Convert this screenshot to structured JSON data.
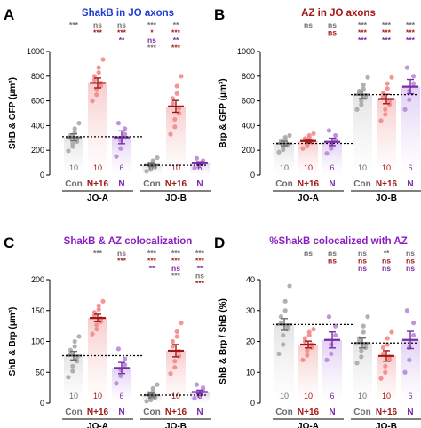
{
  "colors": {
    "con": "#6d6d6d",
    "n16": "#a31616",
    "n": "#7b2aa8",
    "con_bar_fill": "#e4e4e4",
    "n16_bar_fill": "#f8cccc",
    "n_bar_fill": "#e1d0f4",
    "con_point": "#a9a9a9",
    "n16_point": "#f28a8a",
    "n_point": "#b58ad9",
    "title_blue": "#1f3bd1",
    "title_red": "#a31616",
    "title_purple": "#8a1fc1"
  },
  "chart_data": [
    {
      "panel": "A",
      "type": "bar",
      "title": "ShakB in JO axons",
      "title_color": "title_blue",
      "ylabel": "ShB & GFP (μm³)",
      "ylim": [
        0,
        1000
      ],
      "yticks": [
        "0",
        "200",
        "400",
        "600",
        "800",
        "1000"
      ],
      "ytick_values": [
        0,
        200,
        400,
        600,
        800,
        1000
      ],
      "groups": [
        "JO-A",
        "JO-B"
      ],
      "categories": [
        "Con",
        "N+16",
        "N"
      ],
      "bars": [
        {
          "group": 0,
          "cat": 0,
          "mean": 305,
          "sem": 28,
          "n": "10",
          "points": [
            195,
            230,
            255,
            270,
            285,
            300,
            320,
            345,
            375,
            420
          ]
        },
        {
          "group": 0,
          "cat": 1,
          "mean": 745,
          "sem": 40,
          "n": "10",
          "points": [
            600,
            650,
            690,
            720,
            745,
            770,
            800,
            830,
            870,
            935
          ]
        },
        {
          "group": 0,
          "cat": 2,
          "mean": 305,
          "sem": 52,
          "n": "6",
          "points": [
            150,
            215,
            280,
            330,
            375,
            420
          ]
        },
        {
          "group": 1,
          "cat": 0,
          "mean": 80,
          "sem": 12,
          "n": "10",
          "points": [
            30,
            45,
            55,
            65,
            75,
            80,
            90,
            100,
            115,
            140
          ]
        },
        {
          "group": 1,
          "cat": 1,
          "mean": 555,
          "sem": 48,
          "n": "10",
          "points": [
            330,
            390,
            450,
            500,
            540,
            580,
            620,
            660,
            720,
            800
          ]
        },
        {
          "group": 1,
          "cat": 2,
          "mean": 95,
          "sem": 12,
          "n": "6",
          "points": [
            55,
            70,
            85,
            100,
            115,
            135
          ]
        }
      ],
      "reference_lines": [
        {
          "group": 0,
          "value": 310
        },
        {
          "group": 1,
          "value": 78
        }
      ],
      "significance": [
        {
          "group": 0,
          "cat": 0,
          "rows": [
            {
              "text": "***",
              "color": "con"
            }
          ]
        },
        {
          "group": 0,
          "cat": 1,
          "rows": [
            {
              "text": "ns",
              "color": "con"
            },
            {
              "text": "***",
              "color": "n16"
            }
          ]
        },
        {
          "group": 0,
          "cat": 2,
          "rows": [
            {
              "text": "ns",
              "color": "con"
            },
            {
              "text": "***",
              "color": "n16"
            },
            {
              "text": "**",
              "color": "n"
            }
          ]
        },
        {
          "group": 1,
          "cat": 0,
          "rows": [
            {
              "text": "***",
              "color": "con"
            },
            {
              "text": "*",
              "color": "n16"
            },
            {
              "text": "ns",
              "color": "n"
            },
            {
              "text": "***",
              "color": "con"
            }
          ]
        },
        {
          "group": 1,
          "cat": 1,
          "rows": [
            {
              "text": "**",
              "color": "con"
            },
            {
              "text": "***",
              "color": "n16"
            },
            {
              "text": "**",
              "color": "n"
            },
            {
              "text": "***",
              "color": "n16"
            }
          ]
        }
      ]
    },
    {
      "panel": "B",
      "type": "bar",
      "title": "AZ in JO axons",
      "title_color": "title_red",
      "ylabel": "Brp & GFP (μm³)",
      "ylim": [
        0,
        1000
      ],
      "yticks": [
        "0",
        "200",
        "400",
        "600",
        "800",
        "1000"
      ],
      "ytick_values": [
        0,
        200,
        400,
        600,
        800,
        1000
      ],
      "groups": [
        "JO-A",
        "JO-B"
      ],
      "categories": [
        "Con",
        "N+16",
        "N"
      ],
      "bars": [
        {
          "group": 0,
          "cat": 0,
          "mean": 255,
          "sem": 18,
          "n": "10",
          "points": [
            185,
            205,
            225,
            240,
            250,
            260,
            275,
            290,
            305,
            320
          ]
        },
        {
          "group": 0,
          "cat": 1,
          "mean": 275,
          "sem": 15,
          "n": "10",
          "points": [
            215,
            235,
            250,
            265,
            275,
            285,
            295,
            305,
            320,
            335
          ]
        },
        {
          "group": 0,
          "cat": 2,
          "mean": 268,
          "sem": 30,
          "n": "6",
          "points": [
            175,
            215,
            250,
            285,
            320,
            360
          ]
        },
        {
          "group": 1,
          "cat": 0,
          "mean": 650,
          "sem": 30,
          "n": "10",
          "points": [
            530,
            570,
            600,
            625,
            645,
            660,
            680,
            700,
            730,
            790
          ]
        },
        {
          "group": 1,
          "cat": 1,
          "mean": 615,
          "sem": 38,
          "n": "10",
          "points": [
            440,
            490,
            530,
            570,
            600,
            630,
            660,
            700,
            740,
            790
          ]
        },
        {
          "group": 1,
          "cat": 2,
          "mean": 715,
          "sem": 58,
          "n": "6",
          "points": [
            530,
            610,
            680,
            740,
            800,
            870
          ]
        }
      ],
      "reference_lines": [
        {
          "group": 0,
          "value": 255
        },
        {
          "group": 1,
          "value": 650
        }
      ],
      "significance": [
        {
          "group": 0,
          "cat": 1,
          "rows": [
            {
              "text": "ns",
              "color": "con"
            }
          ]
        },
        {
          "group": 0,
          "cat": 2,
          "rows": [
            {
              "text": "ns",
              "color": "con"
            },
            {
              "text": "ns",
              "color": "n16"
            }
          ]
        },
        {
          "group": 1,
          "cat": 0,
          "rows": [
            {
              "text": "***",
              "color": "con"
            },
            {
              "text": "***",
              "color": "n16"
            },
            {
              "text": "***",
              "color": "n"
            }
          ]
        },
        {
          "group": 1,
          "cat": 1,
          "rows": [
            {
              "text": "***",
              "color": "con"
            },
            {
              "text": "***",
              "color": "n16"
            },
            {
              "text": "***",
              "color": "n"
            }
          ]
        },
        {
          "group": 1,
          "cat": 2,
          "rows": [
            {
              "text": "***",
              "color": "con"
            },
            {
              "text": "***",
              "color": "n16"
            },
            {
              "text": "***",
              "color": "n"
            }
          ]
        }
      ]
    },
    {
      "panel": "C",
      "type": "bar",
      "title": "ShakB & AZ colocalization",
      "title_color": "title_purple",
      "ylabel": "ShB & Brp (μm³)",
      "ylim": [
        0,
        200
      ],
      "yticks": [
        "0",
        "50",
        "100",
        "150",
        "200"
      ],
      "ytick_values": [
        0,
        50,
        100,
        150,
        200
      ],
      "groups": [
        "JO-A",
        "JO-B"
      ],
      "categories": [
        "Con",
        "N+16",
        "N"
      ],
      "bars": [
        {
          "group": 0,
          "cat": 0,
          "mean": 77,
          "sem": 7,
          "n": "10",
          "points": [
            42,
            52,
            60,
            68,
            74,
            80,
            86,
            92,
            100,
            108
          ]
        },
        {
          "group": 0,
          "cat": 1,
          "mean": 138,
          "sem": 6,
          "n": "10",
          "points": [
            112,
            120,
            127,
            132,
            137,
            142,
            147,
            152,
            158,
            165
          ]
        },
        {
          "group": 0,
          "cat": 2,
          "mean": 57,
          "sem": 9,
          "n": "6",
          "points": [
            32,
            44,
            54,
            62,
            72,
            88
          ]
        },
        {
          "group": 1,
          "cat": 0,
          "mean": 13,
          "sem": 3,
          "n": "10",
          "points": [
            3,
            5,
            7,
            9,
            11,
            13,
            16,
            19,
            24,
            30
          ]
        },
        {
          "group": 1,
          "cat": 1,
          "mean": 85,
          "sem": 10,
          "n": "10",
          "points": [
            48,
            58,
            68,
            76,
            84,
            92,
            100,
            108,
            116,
            130
          ]
        },
        {
          "group": 1,
          "cat": 2,
          "mean": 18,
          "sem": 3,
          "n": "6",
          "points": [
            8,
            12,
            16,
            20,
            25,
            30
          ]
        }
      ],
      "reference_lines": [
        {
          "group": 0,
          "value": 77
        },
        {
          "group": 1,
          "value": 13
        }
      ],
      "significance": [
        {
          "group": 0,
          "cat": 1,
          "rows": [
            {
              "text": "***",
              "color": "con"
            }
          ]
        },
        {
          "group": 0,
          "cat": 2,
          "rows": [
            {
              "text": "ns",
              "color": "con"
            },
            {
              "text": "***",
              "color": "n16"
            }
          ]
        },
        {
          "group": 1,
          "cat": 0,
          "rows": [
            {
              "text": "***",
              "color": "con"
            },
            {
              "text": "***",
              "color": "n16"
            },
            {
              "text": "**",
              "color": "n"
            }
          ]
        },
        {
          "group": 1,
          "cat": 1,
          "rows": [
            {
              "text": "***",
              "color": "con"
            },
            {
              "text": "***",
              "color": "n16"
            },
            {
              "text": "ns",
              "color": "n"
            },
            {
              "text": "***",
              "color": "con"
            }
          ]
        },
        {
          "group": 1,
          "cat": 2,
          "rows": [
            {
              "text": "***",
              "color": "con"
            },
            {
              "text": "***",
              "color": "n16"
            },
            {
              "text": "**",
              "color": "n"
            },
            {
              "text": "ns",
              "color": "con"
            },
            {
              "text": "***",
              "color": "n16"
            }
          ]
        }
      ]
    },
    {
      "panel": "D",
      "type": "bar",
      "title": "%ShakB colocalized with AZ",
      "title_color": "title_purple",
      "ylabel": "ShB & Brp / ShB (%)",
      "ylim": [
        0,
        40
      ],
      "yticks": [
        "0",
        "10",
        "20",
        "30",
        "40"
      ],
      "ytick_values": [
        0,
        10,
        20,
        30,
        40
      ],
      "groups": [
        "JO-A",
        "JO-B"
      ],
      "categories": [
        "Con",
        "N+16",
        "N"
      ],
      "bars": [
        {
          "group": 0,
          "cat": 0,
          "mean": 25.5,
          "sem": 1.9,
          "n": "10",
          "points": [
            16,
            19,
            22,
            24,
            25,
            26,
            28,
            30,
            33,
            38
          ]
        },
        {
          "group": 0,
          "cat": 1,
          "mean": 19,
          "sem": 1.1,
          "n": "10",
          "points": [
            14,
            15.5,
            17,
            18,
            19,
            20,
            21,
            22,
            23,
            24
          ]
        },
        {
          "group": 0,
          "cat": 2,
          "mean": 20.5,
          "sem": 2.6,
          "n": "6",
          "points": [
            14,
            16,
            19,
            22,
            25,
            28
          ]
        },
        {
          "group": 1,
          "cat": 0,
          "mean": 19.5,
          "sem": 1.6,
          "n": "10",
          "points": [
            13,
            15,
            17,
            18,
            19,
            20,
            21,
            23,
            25,
            28
          ]
        },
        {
          "group": 1,
          "cat": 1,
          "mean": 15.3,
          "sem": 1.7,
          "n": "10",
          "points": [
            8,
            10,
            12,
            14,
            15,
            16,
            18,
            19,
            21,
            23
          ]
        },
        {
          "group": 1,
          "cat": 2,
          "mean": 20.5,
          "sem": 2.8,
          "n": "6",
          "points": [
            10,
            14,
            18,
            22,
            26,
            30
          ]
        }
      ],
      "reference_lines": [
        {
          "group": 0,
          "value": 25.5
        },
        {
          "group": 1,
          "value": 19.5
        }
      ],
      "significance": [
        {
          "group": 0,
          "cat": 1,
          "rows": [
            {
              "text": "ns",
              "color": "con"
            }
          ]
        },
        {
          "group": 0,
          "cat": 2,
          "rows": [
            {
              "text": "ns",
              "color": "con"
            },
            {
              "text": "ns",
              "color": "n16"
            }
          ]
        },
        {
          "group": 1,
          "cat": 0,
          "rows": [
            {
              "text": "ns",
              "color": "con"
            },
            {
              "text": "ns",
              "color": "n16"
            },
            {
              "text": "ns",
              "color": "n"
            }
          ]
        },
        {
          "group": 1,
          "cat": 1,
          "rows": [
            {
              "text": "**",
              "color": "con"
            },
            {
              "text": "ns",
              "color": "n16"
            },
            {
              "text": "ns",
              "color": "n"
            }
          ]
        },
        {
          "group": 1,
          "cat": 2,
          "rows": [
            {
              "text": "ns",
              "color": "con"
            },
            {
              "text": "ns",
              "color": "n16"
            },
            {
              "text": "ns",
              "color": "n"
            }
          ]
        }
      ]
    }
  ]
}
